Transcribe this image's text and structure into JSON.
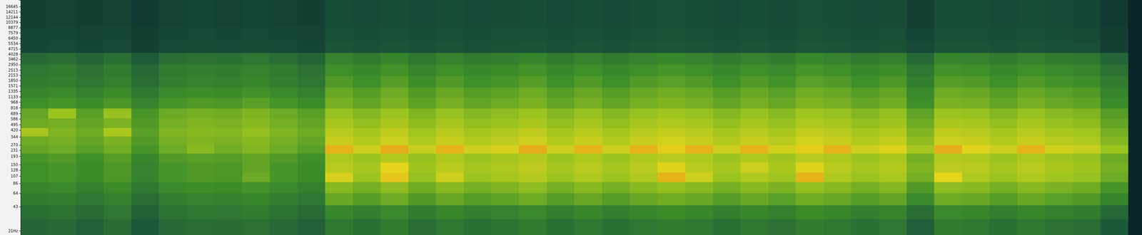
{
  "chart_data": {
    "type": "heatmap",
    "log": "y",
    "tick_labels": "y",
    "xlim": [
      0,
      40.5
    ],
    "ylim": [
      18.5,
      20200
    ],
    "yticks": [
      16645,
      14211,
      12144,
      10379,
      8877,
      7579,
      6450,
      5534,
      4715,
      4028,
      3462,
      2950,
      2513,
      2153,
      1850,
      1571,
      1335,
      1133,
      968,
      818,
      689,
      586,
      495,
      420,
      344,
      270,
      231,
      193,
      150,
      128,
      107,
      86,
      64,
      43,
      {
        "value": 21,
        "label": "21Hz"
      }
    ],
    "zlim": [
      0,
      100
    ],
    "x_bins": [
      0,
      1,
      2,
      3,
      4,
      5,
      6,
      7,
      8,
      9,
      10,
      11,
      12,
      13,
      14,
      15,
      16,
      17,
      18,
      19,
      20,
      21,
      22,
      23,
      24,
      25,
      26,
      27,
      28,
      29,
      30,
      31,
      32,
      33,
      34,
      35,
      36,
      37,
      38,
      39,
      40
    ],
    "y_bins": [
      18.5,
      30,
      45,
      65,
      90,
      120,
      160,
      210,
      270,
      350,
      450,
      600,
      800,
      1100,
      1500,
      2100,
      3000,
      4200,
      6000,
      9000,
      20200
    ],
    "z": [
      [
        30,
        32,
        28,
        33,
        24,
        32,
        34,
        33,
        36,
        32,
        28,
        39,
        35,
        40,
        34,
        39,
        35,
        37,
        40,
        35,
        39,
        35,
        39,
        41,
        39,
        35,
        39,
        36,
        41,
        39,
        35,
        38,
        27,
        40,
        39,
        35,
        39,
        36,
        34,
        25
      ],
      [
        35,
        37,
        33,
        38,
        29,
        37,
        39,
        38,
        41,
        37,
        33,
        46,
        42,
        47,
        41,
        46,
        42,
        44,
        47,
        42,
        46,
        42,
        46,
        48,
        46,
        42,
        46,
        43,
        48,
        46,
        42,
        45,
        34,
        47,
        46,
        42,
        46,
        43,
        41,
        32
      ],
      [
        40,
        42,
        38,
        43,
        34,
        42,
        44,
        43,
        46,
        42,
        38,
        59,
        55,
        60,
        54,
        59,
        55,
        57,
        60,
        55,
        59,
        55,
        59,
        61,
        59,
        55,
        59,
        56,
        61,
        59,
        55,
        58,
        47,
        60,
        59,
        55,
        59,
        56,
        54,
        45
      ],
      [
        45,
        47,
        43,
        48,
        39,
        47,
        49,
        48,
        51,
        47,
        43,
        66,
        62,
        67,
        61,
        66,
        62,
        64,
        67,
        62,
        66,
        62,
        66,
        68,
        66,
        62,
        66,
        63,
        68,
        66,
        62,
        65,
        54,
        67,
        66,
        62,
        66,
        63,
        61,
        52
      ],
      [
        50,
        52,
        48,
        53,
        44,
        52,
        54,
        53,
        60,
        52,
        48,
        82,
        70,
        87,
        69,
        80,
        70,
        72,
        75,
        70,
        74,
        70,
        74,
        90,
        80,
        70,
        74,
        71,
        90,
        74,
        70,
        73,
        62,
        85,
        74,
        70,
        74,
        71,
        69,
        60
      ],
      [
        50,
        52,
        48,
        53,
        44,
        52,
        54,
        53,
        58,
        52,
        48,
        76,
        72,
        85,
        71,
        76,
        72,
        74,
        77,
        72,
        76,
        72,
        76,
        84,
        76,
        72,
        80,
        73,
        84,
        76,
        72,
        75,
        64,
        77,
        76,
        72,
        76,
        73,
        71,
        62
      ],
      [
        52,
        54,
        50,
        55,
        46,
        54,
        56,
        55,
        58,
        54,
        50,
        74,
        70,
        75,
        69,
        74,
        70,
        72,
        75,
        70,
        74,
        70,
        74,
        76,
        74,
        70,
        74,
        71,
        76,
        74,
        70,
        73,
        62,
        75,
        74,
        70,
        74,
        71,
        69,
        60
      ],
      [
        58,
        60,
        56,
        61,
        52,
        60,
        66,
        61,
        64,
        60,
        56,
        90,
        80,
        91,
        79,
        90,
        80,
        82,
        91,
        80,
        90,
        80,
        90,
        86,
        90,
        80,
        90,
        81,
        86,
        90,
        80,
        83,
        72,
        91,
        84,
        80,
        90,
        81,
        79,
        70
      ],
      [
        60,
        62,
        58,
        63,
        54,
        62,
        64,
        63,
        66,
        62,
        58,
        79,
        75,
        80,
        74,
        79,
        75,
        77,
        80,
        75,
        79,
        75,
        79,
        81,
        79,
        75,
        79,
        76,
        81,
        79,
        75,
        78,
        67,
        80,
        79,
        75,
        79,
        76,
        74,
        65
      ],
      [
        72,
        64,
        60,
        73,
        56,
        64,
        66,
        65,
        68,
        64,
        60,
        76,
        72,
        77,
        71,
        76,
        72,
        74,
        77,
        72,
        76,
        72,
        76,
        78,
        76,
        72,
        76,
        73,
        78,
        76,
        72,
        75,
        64,
        77,
        76,
        72,
        76,
        73,
        71,
        62
      ],
      [
        60,
        62,
        58,
        63,
        54,
        62,
        64,
        63,
        66,
        62,
        58,
        72,
        68,
        73,
        67,
        72,
        68,
        70,
        73,
        68,
        72,
        68,
        72,
        74,
        72,
        68,
        72,
        69,
        74,
        72,
        68,
        71,
        60,
        73,
        72,
        68,
        72,
        69,
        67,
        58
      ],
      [
        58,
        70,
        56,
        69,
        52,
        60,
        62,
        61,
        64,
        60,
        56,
        69,
        65,
        70,
        64,
        69,
        65,
        67,
        70,
        65,
        69,
        65,
        69,
        71,
        69,
        65,
        69,
        66,
        71,
        69,
        65,
        68,
        57,
        70,
        69,
        65,
        69,
        66,
        64,
        55
      ],
      [
        50,
        52,
        48,
        53,
        44,
        52,
        54,
        53,
        56,
        52,
        48,
        62,
        58,
        63,
        57,
        62,
        58,
        60,
        63,
        58,
        62,
        58,
        62,
        64,
        62,
        58,
        62,
        59,
        64,
        62,
        58,
        61,
        50,
        63,
        62,
        58,
        62,
        59,
        57,
        48
      ],
      [
        45,
        47,
        43,
        48,
        39,
        47,
        49,
        48,
        51,
        47,
        43,
        59,
        55,
        60,
        54,
        59,
        55,
        57,
        60,
        55,
        59,
        55,
        59,
        61,
        59,
        55,
        59,
        56,
        61,
        59,
        55,
        58,
        47,
        60,
        59,
        55,
        59,
        56,
        54,
        45
      ],
      [
        40,
        42,
        38,
        43,
        34,
        42,
        44,
        43,
        46,
        42,
        38,
        54,
        50,
        55,
        49,
        54,
        50,
        52,
        55,
        50,
        54,
        50,
        54,
        56,
        54,
        50,
        54,
        51,
        56,
        54,
        50,
        53,
        42,
        55,
        54,
        50,
        54,
        51,
        49,
        40
      ],
      [
        38,
        40,
        36,
        41,
        32,
        40,
        42,
        41,
        44,
        40,
        36,
        50,
        46,
        51,
        45,
        50,
        46,
        48,
        51,
        46,
        50,
        46,
        50,
        52,
        50,
        46,
        50,
        47,
        52,
        50,
        46,
        49,
        38,
        51,
        50,
        46,
        50,
        47,
        45,
        36
      ],
      [
        32,
        34,
        30,
        35,
        26,
        34,
        36,
        35,
        38,
        34,
        30,
        44,
        40,
        45,
        39,
        44,
        40,
        42,
        45,
        40,
        44,
        40,
        44,
        46,
        44,
        40,
        44,
        41,
        46,
        44,
        40,
        43,
        32,
        45,
        44,
        40,
        44,
        41,
        39,
        30
      ],
      [
        15,
        16,
        14,
        16,
        12,
        16,
        17,
        16,
        17,
        16,
        14,
        22,
        20,
        22,
        20,
        22,
        20,
        21,
        22,
        20,
        22,
        20,
        22,
        23,
        22,
        20,
        22,
        20,
        23,
        22,
        20,
        21,
        16,
        22,
        22,
        20,
        22,
        20,
        19,
        12
      ],
      [
        14,
        15,
        13,
        15,
        11,
        15,
        16,
        15,
        16,
        15,
        13,
        20,
        18,
        20,
        18,
        20,
        18,
        19,
        20,
        18,
        20,
        18,
        20,
        21,
        20,
        18,
        20,
        18,
        21,
        20,
        18,
        19,
        14,
        20,
        20,
        18,
        20,
        18,
        17,
        11
      ],
      [
        12,
        13,
        11,
        13,
        9,
        13,
        14,
        13,
        14,
        13,
        11,
        18,
        16,
        18,
        16,
        18,
        16,
        17,
        18,
        16,
        18,
        16,
        18,
        19,
        18,
        16,
        18,
        16,
        19,
        18,
        16,
        17,
        12,
        18,
        18,
        16,
        18,
        16,
        15,
        9
      ]
    ]
  }
}
